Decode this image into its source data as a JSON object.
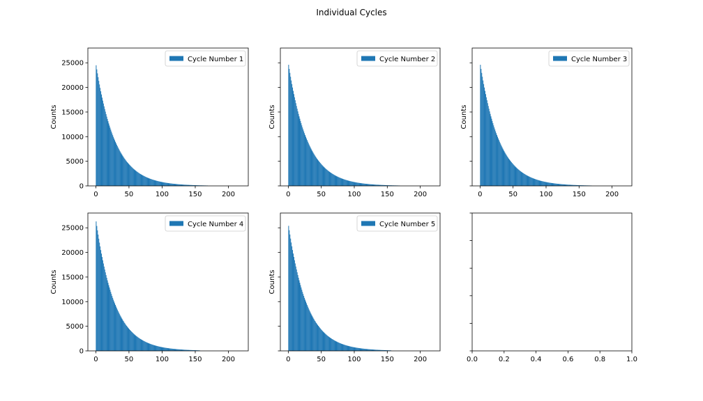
{
  "figure": {
    "title": "Individual Cycles"
  },
  "style": {
    "bar_color": "#1f77b4",
    "axis_color": "#000000",
    "legend_border": "#cccccc"
  },
  "chart_data": [
    {
      "type": "bar",
      "panel": "top-left",
      "legend": "Cycle Number 1",
      "legend_loc": "upper right",
      "ylabel": "Counts",
      "xlim": [
        -12,
        230
      ],
      "ylim": [
        0,
        28000
      ],
      "xticks": [
        0,
        50,
        100,
        150,
        200
      ],
      "yticks": [
        0,
        5000,
        10000,
        15000,
        20000,
        25000
      ],
      "show_yticklabels": true,
      "bin_width": 1,
      "x_range": [
        0,
        220
      ],
      "peak": 24500,
      "decay_scale": 29,
      "values": [
        24500,
        23660,
        22860,
        22080,
        21330,
        20600,
        19900,
        19220,
        18570,
        17930,
        17320,
        16730,
        16160,
        15610,
        15080,
        14570,
        14070,
        13590,
        13130,
        12680,
        12250,
        11830,
        11430,
        11040,
        10660,
        10300,
        9950,
        9610,
        9280,
        8960,
        8660,
        8360,
        8080,
        7800,
        7540,
        7280,
        7030,
        6790,
        6560,
        6340,
        6120,
        5910,
        5710,
        5520,
        5330,
        5150,
        4970,
        4800,
        4640,
        4480,
        4330,
        4180,
        4040,
        3900,
        3770,
        3640,
        3510,
        3390,
        3280,
        3170,
        3060,
        2950,
        2850,
        2760,
        2660,
        2570,
        2480,
        2400,
        2320,
        2240,
        2160,
        2090,
        2020,
        1950,
        1880,
        1820,
        1750,
        1690,
        1640,
        1580,
        1530,
        1470,
        1420,
        1380,
        1330,
        1280,
        1240,
        1200,
        1160,
        1120,
        1080,
        1040,
        1010,
        970,
        940,
        910,
        880,
        850,
        820,
        790,
        760,
        740,
        710,
        690,
        660,
        640,
        620,
        600,
        580,
        560,
        540,
        520,
        500,
        490,
        470,
        450,
        440,
        420,
        410,
        400,
        380,
        370,
        360,
        340,
        330,
        320,
        310,
        300,
        290,
        280,
        270,
        260,
        250,
        240,
        230,
        230,
        220,
        210,
        200,
        200,
        190,
        180,
        180,
        170,
        170,
        160,
        150,
        150,
        140,
        140,
        130,
        130,
        130,
        120,
        120,
        110,
        110,
        100,
        100,
        100,
        90,
        90,
        90,
        80,
        80,
        80,
        70,
        70,
        70,
        0,
        0,
        0,
        0,
        0,
        0,
        0,
        0,
        0,
        0,
        0,
        0,
        0,
        0,
        0,
        0,
        0,
        0,
        0,
        0,
        0,
        0,
        0,
        0,
        0,
        0,
        0,
        0,
        0,
        0,
        0,
        0,
        0,
        0,
        0,
        0,
        0,
        0,
        0,
        0,
        0,
        0,
        0,
        0,
        0,
        0,
        0,
        0,
        0,
        0,
        0,
        0,
        0,
        0,
        0,
        0,
        0,
        0,
        0,
        0
      ]
    },
    {
      "type": "bar",
      "panel": "top-middle",
      "legend": "Cycle Number 2",
      "legend_loc": "upper right",
      "ylabel": "Counts",
      "xlim": [
        -12,
        230
      ],
      "ylim": [
        0,
        28000
      ],
      "xticks": [
        0,
        50,
        100,
        150,
        200
      ],
      "yticks": [
        0,
        5000,
        10000,
        15000,
        20000,
        25000
      ],
      "show_yticklabels": false,
      "bin_width": 1,
      "x_range": [
        0,
        220
      ],
      "peak": 24600,
      "decay_scale": 29,
      "values": [
        24600,
        23760,
        22950,
        22170,
        21410,
        20680,
        19980,
        19300,
        18640,
        18000,
        17390,
        16800,
        16220,
        15670,
        15140,
        14620,
        14120,
        13640,
        13180,
        12730,
        12290,
        11870,
        11470,
        11080,
        10700,
        10330,
        9980,
        9640,
        9310,
        8990,
        8690,
        8390,
        8100,
        7830,
        7560,
        7300,
        7050,
        6810,
        6580,
        6360,
        6140,
        5930,
        5730,
        5530,
        5340,
        5160,
        4990,
        4820,
        4650,
        4490,
        4340,
        4190,
        4050,
        3910,
        3780,
        3650,
        3520,
        3400,
        3290,
        3180,
        3070,
        2960,
        2860,
        2760,
        2670,
        2580,
        2490,
        2410,
        2320,
        2240,
        2170,
        2090,
        2020,
        1950,
        1890,
        1820,
        1760,
        1700,
        1640,
        1590,
        1530,
        1480,
        1430,
        1380,
        1330,
        1290,
        1240,
        1200,
        1160,
        1120,
        1080,
        1040,
        1010,
        970,
        940,
        910,
        880,
        850,
        820,
        790,
        760,
        740,
        710,
        690,
        660,
        640,
        620,
        600,
        580,
        560,
        540,
        520,
        500,
        490,
        470,
        450,
        440,
        420,
        410,
        400,
        380,
        370,
        360,
        340,
        330,
        320,
        310,
        300,
        290,
        280,
        270,
        260,
        250,
        240,
        230,
        230,
        220,
        210,
        200,
        200,
        190,
        180,
        180,
        170,
        170,
        160,
        150,
        150,
        140,
        140,
        130,
        130,
        130,
        120,
        120,
        110,
        110,
        100,
        100,
        100,
        90,
        90,
        90,
        80,
        80,
        80,
        70,
        70,
        70,
        0,
        0,
        0,
        0,
        0,
        0,
        0,
        0,
        0,
        0,
        0,
        0,
        0,
        0,
        0,
        0,
        0,
        0,
        0,
        0,
        0,
        0,
        0,
        0,
        0,
        0,
        0,
        0,
        0,
        0,
        0,
        0,
        0,
        0,
        0,
        0,
        0,
        0,
        0,
        0,
        0,
        0,
        0,
        0,
        0,
        0,
        0,
        0,
        0,
        0,
        0,
        0,
        0,
        0,
        0,
        0,
        0,
        0,
        0,
        0
      ]
    },
    {
      "type": "bar",
      "panel": "top-right",
      "legend": "Cycle Number 3",
      "legend_loc": "upper right",
      "ylabel": "Counts",
      "xlim": [
        -12,
        230
      ],
      "ylim": [
        0,
        28000
      ],
      "xticks": [
        0,
        50,
        100,
        150,
        200
      ],
      "yticks": [
        0,
        5000,
        10000,
        15000,
        20000,
        25000
      ],
      "show_yticklabels": false,
      "bin_width": 1,
      "x_range": [
        0,
        220
      ],
      "peak": 24600,
      "decay_scale": 29,
      "values": [
        24600,
        23760,
        22950,
        22170,
        21410,
        20680,
        19980,
        19300,
        18640,
        18000,
        17390,
        16800,
        16220,
        15670,
        15140,
        14620,
        14120,
        13640,
        13180,
        12730,
        12290,
        11870,
        11470,
        11080,
        10700,
        10330,
        9980,
        9640,
        9310,
        8990,
        8690,
        8390,
        8100,
        7830,
        7560,
        7300,
        7050,
        6810,
        6580,
        6360,
        6140,
        5930,
        5730,
        5530,
        5340,
        5160,
        4990,
        4820,
        4650,
        4490,
        4340,
        4190,
        4050,
        3910,
        3780,
        3650,
        3520,
        3400,
        3290,
        3180,
        3070,
        2960,
        2860,
        2760,
        2670,
        2580,
        2490,
        2410,
        2320,
        2240,
        2170,
        2090,
        2020,
        1950,
        1890,
        1820,
        1760,
        1700,
        1640,
        1590,
        1530,
        1480,
        1430,
        1380,
        1330,
        1290,
        1240,
        1200,
        1160,
        1120,
        1080,
        1040,
        1010,
        970,
        940,
        910,
        880,
        850,
        820,
        790,
        760,
        740,
        710,
        690,
        660,
        640,
        620,
        600,
        580,
        560,
        540,
        520,
        500,
        490,
        470,
        450,
        440,
        420,
        410,
        400,
        380,
        370,
        360,
        340,
        330,
        320,
        310,
        300,
        290,
        280,
        270,
        260,
        250,
        240,
        230,
        230,
        220,
        210,
        200,
        200,
        190,
        180,
        180,
        170,
        170,
        160,
        150,
        150,
        140,
        140,
        130,
        130,
        130,
        120,
        120,
        110,
        110,
        100,
        100,
        100,
        90,
        90,
        90,
        80,
        80,
        80,
        70,
        70,
        70,
        0,
        0,
        0,
        0,
        0,
        0,
        0,
        0,
        0,
        0,
        0,
        0,
        0,
        0,
        0,
        0,
        0,
        0,
        0,
        0,
        0,
        0,
        0,
        0,
        0,
        0,
        0,
        0,
        0,
        0,
        0,
        0,
        0,
        0,
        0,
        0,
        0,
        0,
        0,
        0,
        0,
        0,
        0,
        0,
        0,
        0,
        0,
        0,
        0,
        0,
        0,
        0,
        0,
        0,
        0,
        0,
        0,
        0,
        0,
        0
      ]
    },
    {
      "type": "bar",
      "panel": "bottom-left",
      "legend": "Cycle Number 4",
      "legend_loc": "upper right",
      "ylabel": "Counts",
      "xlim": [
        -12,
        230
      ],
      "ylim": [
        0,
        28000
      ],
      "xticks": [
        0,
        50,
        100,
        150,
        200
      ],
      "yticks": [
        0,
        5000,
        10000,
        15000,
        20000,
        25000
      ],
      "show_yticklabels": true,
      "bin_width": 1,
      "x_range": [
        0,
        220
      ],
      "peak": 26300,
      "decay_scale": 28,
      "values": [
        26300,
        25370,
        24480,
        23620,
        22790,
        21990,
        21220,
        20480,
        19760,
        19070,
        18400,
        17750,
        17130,
        16530,
        15950,
        15390,
        14850,
        14330,
        13830,
        13340,
        12880,
        12430,
        11990,
        11570,
        11160,
        10770,
        10390,
        10030,
        9680,
        9340,
        9010,
        8690,
        8390,
        8090,
        7810,
        7540,
        7270,
        7020,
        6770,
        6530,
        6300,
        6080,
        5870,
        5660,
        5460,
        5270,
        5090,
        4910,
        4740,
        4570,
        4410,
        4250,
        4100,
        3960,
        3820,
        3690,
        3560,
        3430,
        3310,
        3190,
        3080,
        2970,
        2870,
        2770,
        2670,
        2580,
        2490,
        2400,
        2320,
        2240,
        2160,
        2080,
        2010,
        1940,
        1870,
        1800,
        1740,
        1680,
        1620,
        1560,
        1510,
        1450,
        1400,
        1350,
        1310,
        1260,
        1220,
        1170,
        1130,
        1090,
        1050,
        1020,
        980,
        950,
        910,
        880,
        850,
        820,
        790,
        760,
        740,
        710,
        690,
        660,
        640,
        620,
        600,
        580,
        560,
        540,
        520,
        500,
        480,
        470,
        450,
        440,
        420,
        410,
        390,
        380,
        370,
        350,
        340,
        330,
        320,
        310,
        300,
        290,
        280,
        270,
        260,
        250,
        240,
        230,
        220,
        220,
        210,
        200,
        190,
        190,
        180,
        170,
        170,
        160,
        160,
        150,
        150,
        140,
        140,
        130,
        130,
        120,
        120,
        110,
        110,
        100,
        100,
        0,
        0,
        0,
        0,
        0,
        0,
        0,
        0,
        0,
        0,
        0,
        0,
        0,
        0,
        0,
        0,
        0,
        0,
        0,
        0,
        0,
        0,
        0,
        0,
        0,
        0,
        0,
        0,
        0,
        0,
        0,
        0,
        0,
        0,
        0,
        0,
        0,
        0,
        0,
        0,
        0,
        0,
        0,
        0,
        0,
        0,
        0,
        0,
        0,
        0,
        0,
        0,
        0,
        0,
        0,
        0,
        0,
        0,
        0,
        0,
        0,
        0,
        0,
        0,
        0,
        0,
        0,
        0,
        0,
        0
      ]
    },
    {
      "type": "bar",
      "panel": "bottom-middle",
      "legend": "Cycle Number 5",
      "legend_loc": "upper right",
      "ylabel": "Counts",
      "xlim": [
        -12,
        230
      ],
      "ylim": [
        0,
        28000
      ],
      "xticks": [
        0,
        50,
        100,
        150,
        200
      ],
      "yticks": [
        0,
        5000,
        10000,
        15000,
        20000,
        25000
      ],
      "show_yticklabels": false,
      "bin_width": 1,
      "x_range": [
        0,
        220
      ],
      "peak": 25400,
      "decay_scale": 28,
      "values": [
        25400,
        24500,
        23640,
        22810,
        22010,
        21240,
        20490,
        19770,
        19080,
        18410,
        17760,
        17140,
        16540,
        15960,
        15400,
        14860,
        14340,
        13840,
        13350,
        12880,
        12430,
        11990,
        11570,
        11170,
        10770,
        10400,
        10030,
        9680,
        9340,
        9010,
        8700,
        8390,
        8100,
        7810,
        7540,
        7270,
        7020,
        6770,
        6530,
        6300,
        6080,
        5870,
        5660,
        5460,
        5270,
        5090,
        4910,
        4740,
        4570,
        4410,
        4250,
        4100,
        3960,
        3820,
        3690,
        3560,
        3430,
        3310,
        3190,
        3080,
        2970,
        2870,
        2770,
        2670,
        2580,
        2490,
        2400,
        2320,
        2240,
        2160,
        2080,
        2010,
        1940,
        1870,
        1800,
        1740,
        1680,
        1620,
        1560,
        1510,
        1450,
        1400,
        1350,
        1310,
        1260,
        1220,
        1170,
        1130,
        1090,
        1050,
        1020,
        980,
        950,
        910,
        880,
        850,
        820,
        790,
        760,
        740,
        710,
        690,
        660,
        640,
        620,
        600,
        580,
        560,
        540,
        520,
        500,
        480,
        470,
        450,
        440,
        420,
        410,
        390,
        380,
        370,
        350,
        340,
        330,
        320,
        310,
        300,
        290,
        280,
        270,
        260,
        250,
        240,
        230,
        220,
        220,
        210,
        200,
        190,
        190,
        180,
        170,
        170,
        160,
        160,
        150,
        150,
        140,
        140,
        130,
        130,
        120,
        120,
        110,
        110,
        100,
        100,
        0,
        0,
        0,
        0,
        0,
        0,
        0,
        0,
        0,
        0,
        0,
        0,
        0,
        0,
        0,
        0,
        0,
        0,
        0,
        0,
        0,
        0,
        0,
        0,
        0,
        0,
        0,
        0,
        0,
        0,
        0,
        0,
        0,
        0,
        0,
        0,
        0,
        0,
        0,
        0,
        0,
        0,
        0,
        0,
        0,
        0,
        0,
        0,
        0,
        0,
        0,
        0,
        0,
        0,
        0,
        0,
        0,
        0,
        0,
        0,
        0,
        0,
        0,
        0,
        0,
        0,
        0,
        0,
        0,
        0
      ]
    },
    {
      "type": "empty",
      "panel": "bottom-right",
      "xlim": [
        0.0,
        1.0
      ],
      "xticks": [
        "0.0",
        "0.2",
        "0.4",
        "0.6",
        "0.8",
        "1.0"
      ],
      "show_yticklabels": false
    }
  ]
}
